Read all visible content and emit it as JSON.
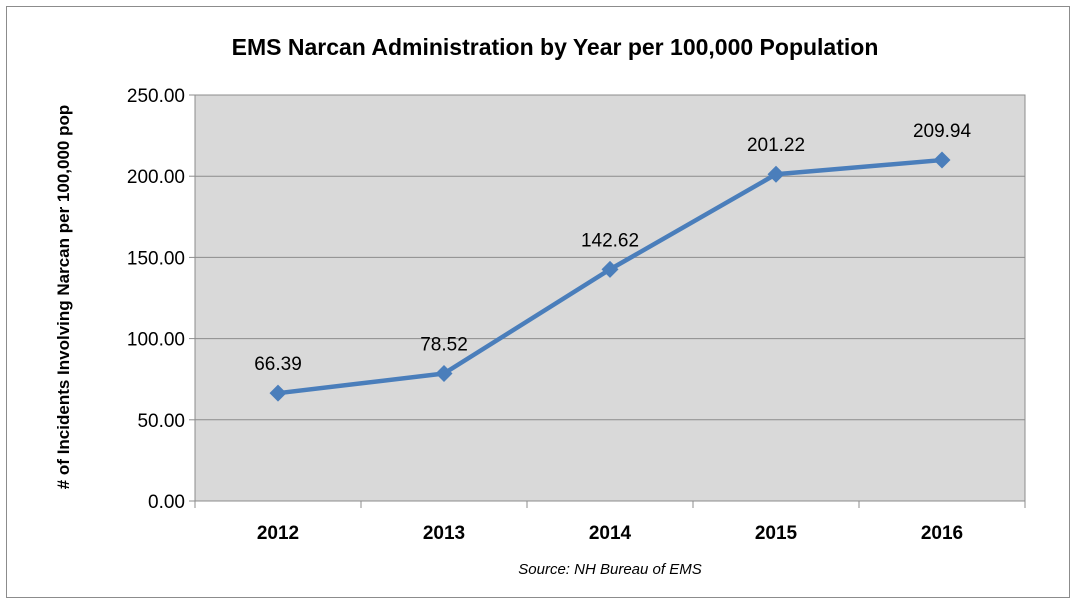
{
  "chart_data": {
    "type": "line",
    "title": "EMS Narcan Administration by Year per 100,000 Population",
    "ylabel": "# of Incidents Involving Narcan per 100,000 pop",
    "xlabel": "",
    "source_note": "Source: NH Bureau of EMS",
    "categories": [
      "2012",
      "2013",
      "2014",
      "2015",
      "2016"
    ],
    "series": [
      {
        "values": [
          66.39,
          78.52,
          142.62,
          201.22,
          209.94
        ],
        "data_labels": [
          "66.39",
          "78.52",
          "142.62",
          "201.22",
          "209.94"
        ],
        "color": "#4a7ebb"
      }
    ],
    "ylim": [
      0,
      250
    ],
    "yticks": [
      0,
      50,
      100,
      150,
      200,
      250
    ],
    "ytick_labels": [
      "0.00",
      "50.00",
      "100.00",
      "150.00",
      "200.00",
      "250.00"
    ],
    "grid": true,
    "legend": "none",
    "colors": {
      "plot_background": "#d9d9d9",
      "gridline": "#8c8c8c",
      "line": "#4a7ebb"
    }
  }
}
